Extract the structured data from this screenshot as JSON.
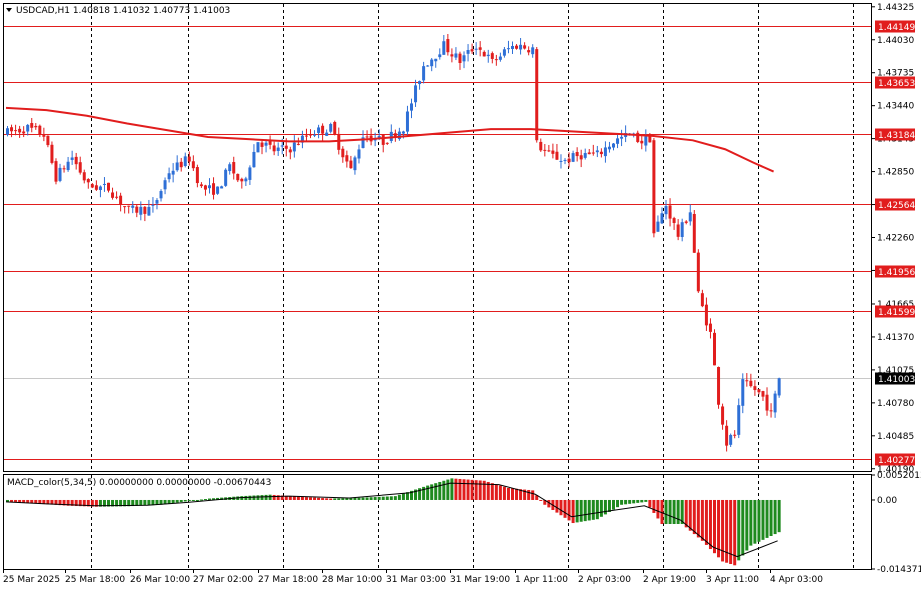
{
  "window": {
    "symbol_info": "USDCAD,H1  1.40818 1.41032 1.40773 1.41003",
    "indicator_info": "MACD_color(5,34,5) 0.00000000 0.00000000 -0.00670443"
  },
  "colors": {
    "bull": "#2e6fd6",
    "bear": "#e11d1d",
    "level": "#e11d1d",
    "ma": "#e11d1d",
    "macd_pos": "#1e8a1e",
    "macd_neg": "#e11d1d",
    "grid": "#000000",
    "current": "#c8c8c8"
  },
  "chart_data": {
    "type": "candlestick",
    "price_axis_ticks": [
      "1.44325",
      "1.44030",
      "1.43735",
      "1.43440",
      "1.43145",
      "1.42850",
      "1.42555",
      "1.42260",
      "1.41965",
      "1.41665",
      "1.41370",
      "1.41075",
      "1.40780",
      "1.40485",
      "1.40190"
    ],
    "ylim": [
      1.4017,
      1.4435
    ],
    "levels": [
      "1.44149",
      "1.43653",
      "1.43184",
      "1.42564",
      "1.41956",
      "1.41599",
      "1.40277"
    ],
    "current_price": "1.41003",
    "time_labels": [
      "25 Mar 2025",
      "25 Mar 18:00",
      "26 Mar 10:00",
      "27 Mar 02:00",
      "27 Mar 18:00",
      "28 Mar 10:00",
      "31 Mar 03:00",
      "31 Mar 19:00",
      "1 Apr 11:00",
      "2 Apr 03:00",
      "2 Apr 19:00",
      "3 Apr 11:00",
      "4 Apr 03:00"
    ],
    "indicator_axis_ticks": [
      "0.0052013",
      "0.00",
      "-0.0143718"
    ],
    "indicator_ylim": [
      -0.0143718,
      0.0052013
    ],
    "moving_average": [
      {
        "bar": 0,
        "value": 1.4342
      },
      {
        "bar": 10,
        "value": 1.434
      },
      {
        "bar": 20,
        "value": 1.4335
      },
      {
        "bar": 30,
        "value": 1.4328
      },
      {
        "bar": 40,
        "value": 1.4322
      },
      {
        "bar": 50,
        "value": 1.4316
      },
      {
        "bar": 60,
        "value": 1.4314
      },
      {
        "bar": 70,
        "value": 1.4312
      },
      {
        "bar": 80,
        "value": 1.4312
      },
      {
        "bar": 90,
        "value": 1.4314
      },
      {
        "bar": 100,
        "value": 1.4317
      },
      {
        "bar": 110,
        "value": 1.432
      },
      {
        "bar": 120,
        "value": 1.4323
      },
      {
        "bar": 130,
        "value": 1.4323
      },
      {
        "bar": 140,
        "value": 1.4321
      },
      {
        "bar": 150,
        "value": 1.4319
      },
      {
        "bar": 160,
        "value": 1.4317
      },
      {
        "bar": 170,
        "value": 1.4313
      },
      {
        "bar": 178,
        "value": 1.4305
      },
      {
        "bar": 185,
        "value": 1.4293
      },
      {
        "bar": 190,
        "value": 1.4285
      }
    ],
    "path": [
      {
        "bar": 0,
        "close": 1.432
      },
      {
        "bar": 5,
        "close": 1.4324
      },
      {
        "bar": 9,
        "close": 1.4318
      },
      {
        "bar": 12,
        "close": 1.428
      },
      {
        "bar": 16,
        "close": 1.4298
      },
      {
        "bar": 20,
        "close": 1.4272
      },
      {
        "bar": 25,
        "close": 1.427
      },
      {
        "bar": 30,
        "close": 1.425
      },
      {
        "bar": 36,
        "close": 1.4252
      },
      {
        "bar": 40,
        "close": 1.4285
      },
      {
        "bar": 45,
        "close": 1.4297
      },
      {
        "bar": 48,
        "close": 1.427
      },
      {
        "bar": 52,
        "close": 1.4268
      },
      {
        "bar": 55,
        "close": 1.429
      },
      {
        "bar": 58,
        "close": 1.4272
      },
      {
        "bar": 62,
        "close": 1.4313
      },
      {
        "bar": 66,
        "close": 1.4304
      },
      {
        "bar": 70,
        "close": 1.4306
      },
      {
        "bar": 75,
        "close": 1.432
      },
      {
        "bar": 80,
        "close": 1.4324
      },
      {
        "bar": 85,
        "close": 1.4286
      },
      {
        "bar": 88,
        "close": 1.4318
      },
      {
        "bar": 93,
        "close": 1.4312
      },
      {
        "bar": 98,
        "close": 1.4325
      },
      {
        "bar": 103,
        "close": 1.438
      },
      {
        "bar": 106,
        "close": 1.439
      },
      {
        "bar": 108,
        "close": 1.4398
      },
      {
        "bar": 112,
        "close": 1.4384
      },
      {
        "bar": 116,
        "close": 1.4398
      },
      {
        "bar": 120,
        "close": 1.4383
      },
      {
        "bar": 124,
        "close": 1.4395
      },
      {
        "bar": 126,
        "close": 1.4398
      },
      {
        "bar": 130,
        "close": 1.4395
      },
      {
        "bar": 131,
        "close": 1.431
      },
      {
        "bar": 134,
        "close": 1.43
      },
      {
        "bar": 138,
        "close": 1.4295
      },
      {
        "bar": 142,
        "close": 1.43
      },
      {
        "bar": 146,
        "close": 1.43
      },
      {
        "bar": 150,
        "close": 1.4312
      },
      {
        "bar": 154,
        "close": 1.4318
      },
      {
        "bar": 157,
        "close": 1.4312
      },
      {
        "bar": 159,
        "close": 1.4315
      },
      {
        "bar": 160,
        "close": 1.423
      },
      {
        "bar": 163,
        "close": 1.4255
      },
      {
        "bar": 166,
        "close": 1.4228
      },
      {
        "bar": 169,
        "close": 1.425
      },
      {
        "bar": 171,
        "close": 1.4175
      },
      {
        "bar": 174,
        "close": 1.414
      },
      {
        "bar": 176,
        "close": 1.408
      },
      {
        "bar": 178,
        "close": 1.4042
      },
      {
        "bar": 180,
        "close": 1.405
      },
      {
        "bar": 182,
        "close": 1.4095
      },
      {
        "bar": 185,
        "close": 1.409
      },
      {
        "bar": 187,
        "close": 1.4083
      },
      {
        "bar": 189,
        "close": 1.4068
      },
      {
        "bar": 191,
        "close": 1.41
      }
    ],
    "macd": {
      "path": [
        {
          "bar": 0,
          "value": -0.0004
        },
        {
          "bar": 10,
          "value": -0.0009
        },
        {
          "bar": 15,
          "value": -0.0012
        },
        {
          "bar": 22,
          "value": -0.0014
        },
        {
          "bar": 30,
          "value": -0.0013
        },
        {
          "bar": 38,
          "value": -0.001
        },
        {
          "bar": 45,
          "value": -0.0002
        },
        {
          "bar": 50,
          "value": 0.0003
        },
        {
          "bar": 58,
          "value": 0.0008
        },
        {
          "bar": 65,
          "value": 0.0011
        },
        {
          "bar": 72,
          "value": 0.0007
        },
        {
          "bar": 80,
          "value": 0.0003
        },
        {
          "bar": 88,
          "value": 0.0005
        },
        {
          "bar": 96,
          "value": 0.0008
        },
        {
          "bar": 104,
          "value": 0.003
        },
        {
          "bar": 110,
          "value": 0.0045
        },
        {
          "bar": 118,
          "value": 0.004
        },
        {
          "bar": 124,
          "value": 0.0025
        },
        {
          "bar": 130,
          "value": 0.002
        },
        {
          "bar": 133,
          "value": -0.001
        },
        {
          "bar": 140,
          "value": -0.0048
        },
        {
          "bar": 146,
          "value": -0.004
        },
        {
          "bar": 152,
          "value": -0.001
        },
        {
          "bar": 158,
          "value": -0.0004
        },
        {
          "bar": 162,
          "value": -0.005
        },
        {
          "bar": 167,
          "value": -0.005
        },
        {
          "bar": 172,
          "value": -0.0085
        },
        {
          "bar": 177,
          "value": -0.0128
        },
        {
          "bar": 180,
          "value": -0.0136
        },
        {
          "bar": 184,
          "value": -0.0095
        },
        {
          "bar": 191,
          "value": -0.0067
        }
      ],
      "signal": [
        {
          "bar": 0,
          "value": -0.0004
        },
        {
          "bar": 10,
          "value": -0.0008
        },
        {
          "bar": 22,
          "value": -0.0012
        },
        {
          "bar": 35,
          "value": -0.0011
        },
        {
          "bar": 45,
          "value": -0.0005
        },
        {
          "bar": 58,
          "value": 0.0005
        },
        {
          "bar": 70,
          "value": 0.0008
        },
        {
          "bar": 85,
          "value": 0.0004
        },
        {
          "bar": 100,
          "value": 0.0015
        },
        {
          "bar": 110,
          "value": 0.0035
        },
        {
          "bar": 122,
          "value": 0.0032
        },
        {
          "bar": 131,
          "value": 0.0012
        },
        {
          "bar": 140,
          "value": -0.0035
        },
        {
          "bar": 150,
          "value": -0.0022
        },
        {
          "bar": 158,
          "value": -0.0012
        },
        {
          "bar": 167,
          "value": -0.0042
        },
        {
          "bar": 175,
          "value": -0.0098
        },
        {
          "bar": 181,
          "value": -0.0118
        },
        {
          "bar": 191,
          "value": -0.0085
        }
      ]
    }
  }
}
